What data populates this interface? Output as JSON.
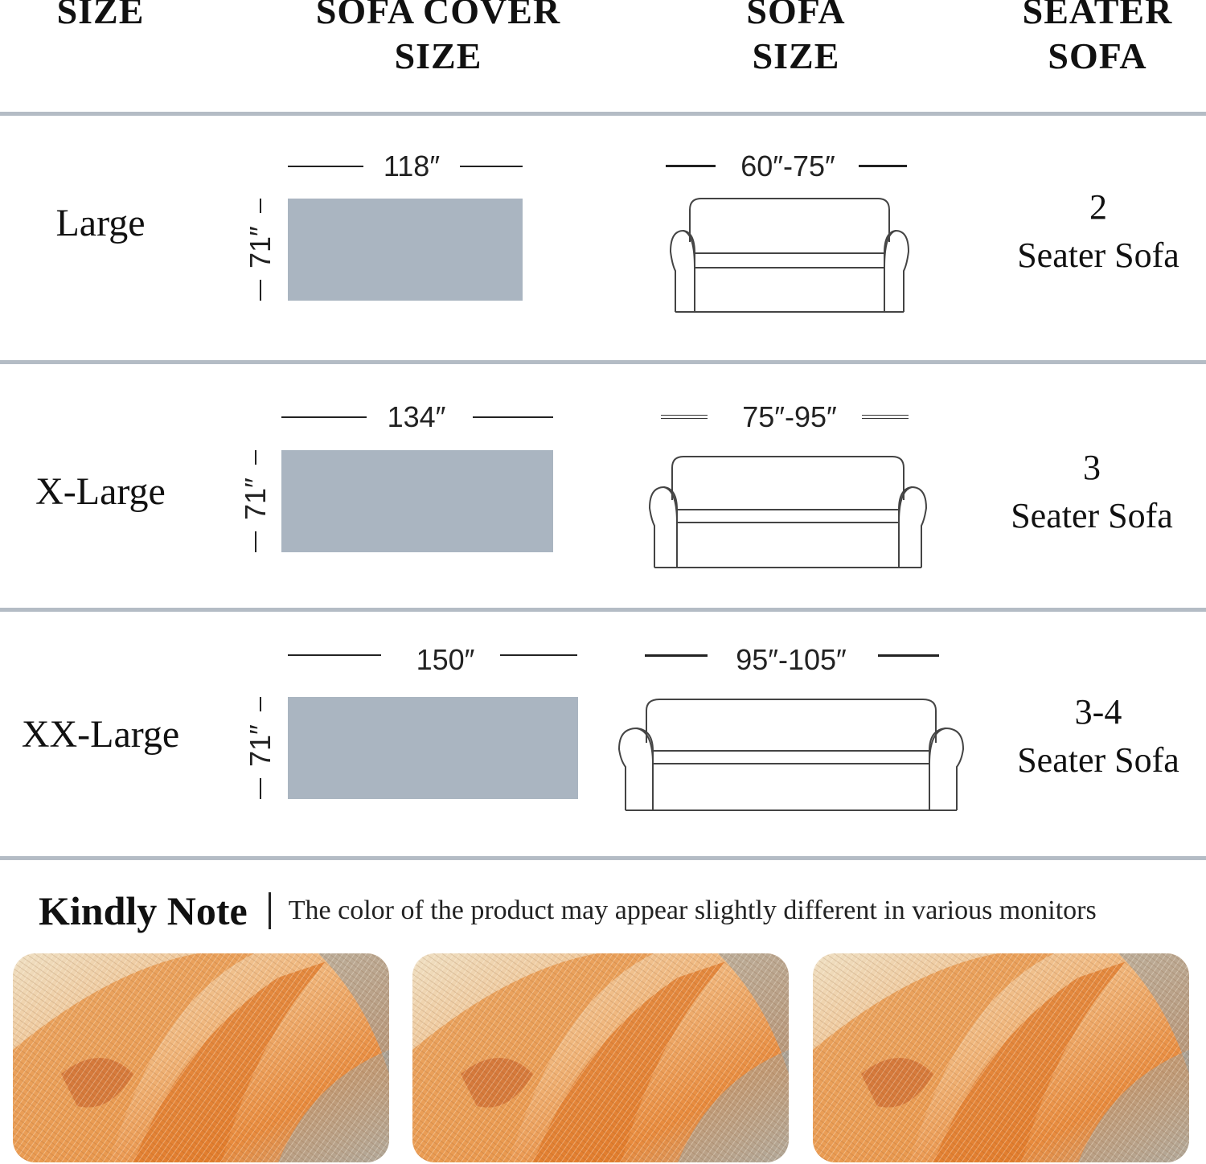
{
  "headers": {
    "size": "SIZE",
    "cover_size": "SOFA COVER SIZE",
    "sofa_size": "SOFA SIZE",
    "seater": "SEATER SOFA"
  },
  "rows": [
    {
      "size": "Large",
      "cover_width": "118″",
      "cover_height": "71″",
      "sofa_size": "60″-75″",
      "seats": "2",
      "seater_text": "Seater Sofa"
    },
    {
      "size": "X-Large",
      "cover_width": "134″",
      "cover_height": "71″",
      "sofa_size": "75″-95″",
      "seats": "3",
      "seater_text": "Seater Sofa"
    },
    {
      "size": "XX-Large",
      "cover_width": "150″",
      "cover_height": "71″",
      "sofa_size": "95″-105″",
      "seats": "3-4",
      "seater_text": "Seater Sofa"
    }
  ],
  "note": {
    "title": "Kindly Note",
    "text": "The color of the product may appear slightly different in various monitors"
  },
  "colors": {
    "cover_fill": "#aab5c1",
    "divider": "#b4bcc5",
    "fabric_orange": "#e88a3c",
    "fabric_cream": "#efe0c4",
    "fabric_blue": "#8fa3ad"
  },
  "swatches": [
    "fabric-swatch",
    "fabric-swatch",
    "fabric-swatch"
  ]
}
